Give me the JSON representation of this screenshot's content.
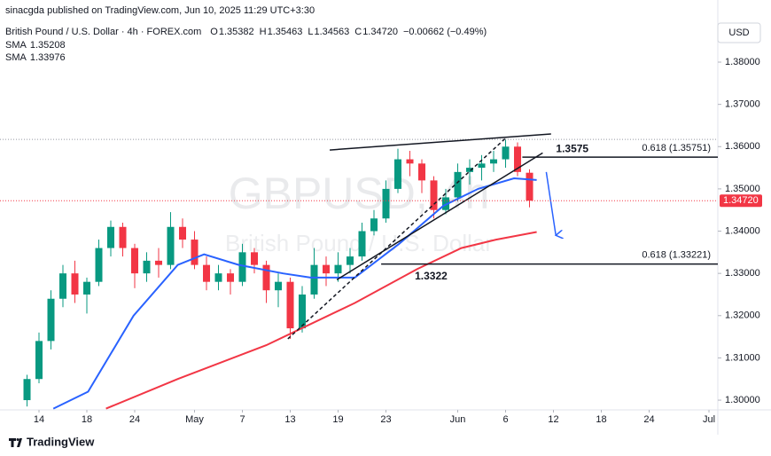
{
  "chart_data": {
    "type": "candlestick",
    "publisher": "sinacgda published on TradingView.com, Jun 10, 2025 11:29 UTC+3:30",
    "instrument": "British Pound / U.S. Dollar · 4h · FOREX.com",
    "ohlc_legend": [
      {
        "label": "O",
        "value": "1.35382"
      },
      {
        "label": "H",
        "value": "1.35463"
      },
      {
        "label": "L",
        "value": "1.34563"
      },
      {
        "label": "C",
        "value": "1.34720"
      }
    ],
    "change": "−0.00662 (−0.49%)",
    "currency": "USD",
    "footer": "TradingView",
    "watermark": {
      "symbol": "GBPUSD, 4h",
      "description": "British Pound / U.S. Dollar"
    },
    "up_color": "#089981",
    "down_color": "#f23645",
    "x": [
      -1,
      0,
      1,
      2,
      3,
      4,
      5,
      6,
      7,
      8,
      9,
      10,
      11,
      12,
      13,
      14,
      15,
      16,
      17,
      18,
      19,
      20,
      21,
      22,
      23,
      24,
      25,
      26,
      27,
      28,
      29,
      30,
      31,
      32,
      33,
      34,
      35,
      36,
      37,
      38,
      39,
      40,
      41
    ],
    "open": [
      1.3,
      1.305,
      1.314,
      1.324,
      1.33,
      1.325,
      1.328,
      1.336,
      1.341,
      1.336,
      1.33,
      1.333,
      1.332,
      1.341,
      1.338,
      1.332,
      1.328,
      1.33,
      1.328,
      1.335,
      1.332,
      1.326,
      1.328,
      1.317,
      1.325,
      1.332,
      1.33,
      1.332,
      1.334,
      1.34,
      1.343,
      1.35,
      1.357,
      1.356,
      1.352,
      1.345,
      1.348,
      1.354,
      1.355,
      1.356,
      1.357,
      1.36,
      1.35382
    ],
    "high": [
      1.306,
      1.316,
      1.326,
      1.332,
      1.333,
      1.329,
      1.338,
      1.3425,
      1.342,
      1.337,
      1.335,
      1.336,
      1.3445,
      1.343,
      1.34,
      1.334,
      1.332,
      1.331,
      1.337,
      1.336,
      1.333,
      1.33,
      1.329,
      1.327,
      1.336,
      1.334,
      1.335,
      1.336,
      1.342,
      1.345,
      1.352,
      1.3595,
      1.359,
      1.357,
      1.353,
      1.35,
      1.356,
      1.357,
      1.358,
      1.359,
      1.3616,
      1.361,
      1.35463
    ],
    "low": [
      1.2985,
      1.304,
      1.312,
      1.322,
      1.323,
      1.3205,
      1.327,
      1.334,
      1.334,
      1.3265,
      1.328,
      1.329,
      1.331,
      1.336,
      1.331,
      1.326,
      1.326,
      1.325,
      1.327,
      1.33,
      1.323,
      1.322,
      1.3145,
      1.316,
      1.324,
      1.327,
      1.328,
      1.33,
      1.333,
      1.339,
      1.342,
      1.349,
      1.353,
      1.349,
      1.343,
      1.344,
      1.347,
      1.351,
      1.352,
      1.354,
      1.355,
      1.353,
      1.34563
    ],
    "close": [
      1.305,
      1.314,
      1.324,
      1.33,
      1.325,
      1.328,
      1.336,
      1.341,
      1.336,
      1.33,
      1.333,
      1.332,
      1.341,
      1.338,
      1.332,
      1.328,
      1.33,
      1.328,
      1.335,
      1.332,
      1.326,
      1.328,
      1.317,
      1.325,
      1.332,
      1.33,
      1.332,
      1.334,
      1.34,
      1.343,
      1.35,
      1.357,
      1.356,
      1.352,
      1.345,
      1.348,
      1.354,
      1.355,
      1.356,
      1.357,
      1.36,
      1.354,
      1.3472
    ],
    "series": [
      {
        "name": "SMA",
        "value_label": "1.33976",
        "color": "#f23645",
        "x": [
          5.6,
          11.6,
          19,
          26.4,
          31.6,
          35.3,
          38.2,
          41.6
        ],
        "values": [
          1.298,
          1.305,
          1.313,
          1.323,
          1.331,
          1.336,
          1.338,
          1.3398
        ]
      },
      {
        "name": "SMA",
        "value_label": "1.35208",
        "color": "#2962ff",
        "x": [
          1.2,
          4.1,
          7.9,
          11.6,
          13.8,
          16.7,
          20.4,
          22.7,
          26.4,
          30.1,
          33.8,
          36.7,
          39.7,
          41.6
        ],
        "values": [
          1.298,
          1.302,
          1.32,
          1.332,
          1.3345,
          1.332,
          1.33,
          1.329,
          1.329,
          1.337,
          1.346,
          1.35,
          1.3525,
          1.3521
        ]
      }
    ],
    "last_price": {
      "value": 1.3472,
      "label": "1.34720"
    },
    "high_line": 1.3617,
    "levels": [
      {
        "value": 1.3575,
        "label": "1.3575",
        "fib_label": "0.618 (1.35751)",
        "x_start": 40.4
      },
      {
        "value": 1.3322,
        "label": "1.3322",
        "fib_label": "0.618 (1.33221)",
        "x_start": 28.6
      }
    ],
    "drawings": [
      {
        "points": [
          [
            24.3,
            1.3592
          ],
          [
            42.8,
            1.363
          ]
        ],
        "color": "#131722",
        "dashed": false,
        "arrow": false
      },
      {
        "points": [
          [
            24.9,
            1.3285
          ],
          [
            42.1,
            1.3585
          ]
        ],
        "color": "#131722",
        "dashed": false,
        "arrow": false
      },
      {
        "points": [
          [
            20.8,
            1.3145
          ],
          [
            39.0,
            1.362
          ]
        ],
        "color": "#131722",
        "dashed": true,
        "arrow": false
      },
      {
        "points": [
          [
            42.4,
            1.354
          ],
          [
            43.2,
            1.339
          ]
        ],
        "color": "#2962ff",
        "dashed": false,
        "arrow": true
      }
    ],
    "xlim": [
      -3.26,
      56.74
    ],
    "xticks": [
      {
        "value": 0,
        "label": "14"
      },
      {
        "value": 4,
        "label": "18"
      },
      {
        "value": 8,
        "label": "24"
      },
      {
        "value": 13,
        "label": "May"
      },
      {
        "value": 17,
        "label": "7"
      },
      {
        "value": 21,
        "label": "13"
      },
      {
        "value": 25,
        "label": "19"
      },
      {
        "value": 29,
        "label": "23"
      },
      {
        "value": 35,
        "label": "Jun"
      },
      {
        "value": 39,
        "label": "6"
      },
      {
        "value": 43,
        "label": "12"
      },
      {
        "value": 47,
        "label": "18"
      },
      {
        "value": 51,
        "label": "24"
      },
      {
        "value": 56,
        "label": "Jul"
      }
    ],
    "ylim": [
      1.2977,
      1.3947
    ],
    "yticks": [
      {
        "value": 1.3,
        "label": "1.30000"
      },
      {
        "value": 1.31,
        "label": "1.31000"
      },
      {
        "value": 1.32,
        "label": "1.32000"
      },
      {
        "value": 1.33,
        "label": "1.33000"
      },
      {
        "value": 1.34,
        "label": "1.34000"
      },
      {
        "value": 1.35,
        "label": "1.35000"
      },
      {
        "value": 1.36,
        "label": "1.36000"
      },
      {
        "value": 1.37,
        "label": "1.37000"
      },
      {
        "value": 1.38,
        "label": "1.38000"
      }
    ]
  }
}
